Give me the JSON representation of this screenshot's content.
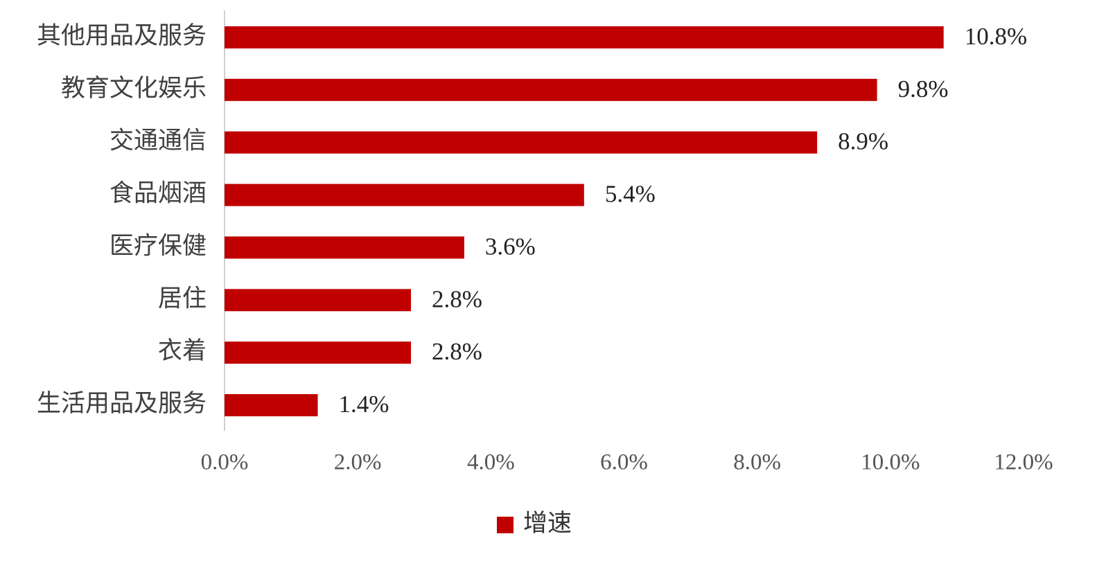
{
  "chart_data": {
    "type": "barh",
    "categories": [
      "其他用品及服务",
      "教育文化娱乐",
      "交通通信",
      "食品烟酒",
      "医疗保健",
      "居住",
      "衣着",
      "生活用品及服务"
    ],
    "series": [
      {
        "name": "增速",
        "color": "#c00000",
        "values": [
          10.8,
          9.8,
          8.9,
          5.4,
          3.6,
          2.8,
          2.8,
          1.4
        ],
        "value_labels": [
          "10.8%",
          "9.8%",
          "8.9%",
          "5.4%",
          "3.6%",
          "2.8%",
          "2.8%",
          "1.4%"
        ]
      }
    ],
    "xlim": [
      0,
      12
    ],
    "xticks": [
      {
        "value": 0,
        "label": "0.0%"
      },
      {
        "value": 2,
        "label": "2.0%"
      },
      {
        "value": 4,
        "label": "4.0%"
      },
      {
        "value": 6,
        "label": "6.0%"
      },
      {
        "value": 8,
        "label": "8.0%"
      },
      {
        "value": 10,
        "label": "10.0%"
      },
      {
        "value": 12,
        "label": "12.0%"
      }
    ],
    "grid": false,
    "legend": "bottom"
  }
}
